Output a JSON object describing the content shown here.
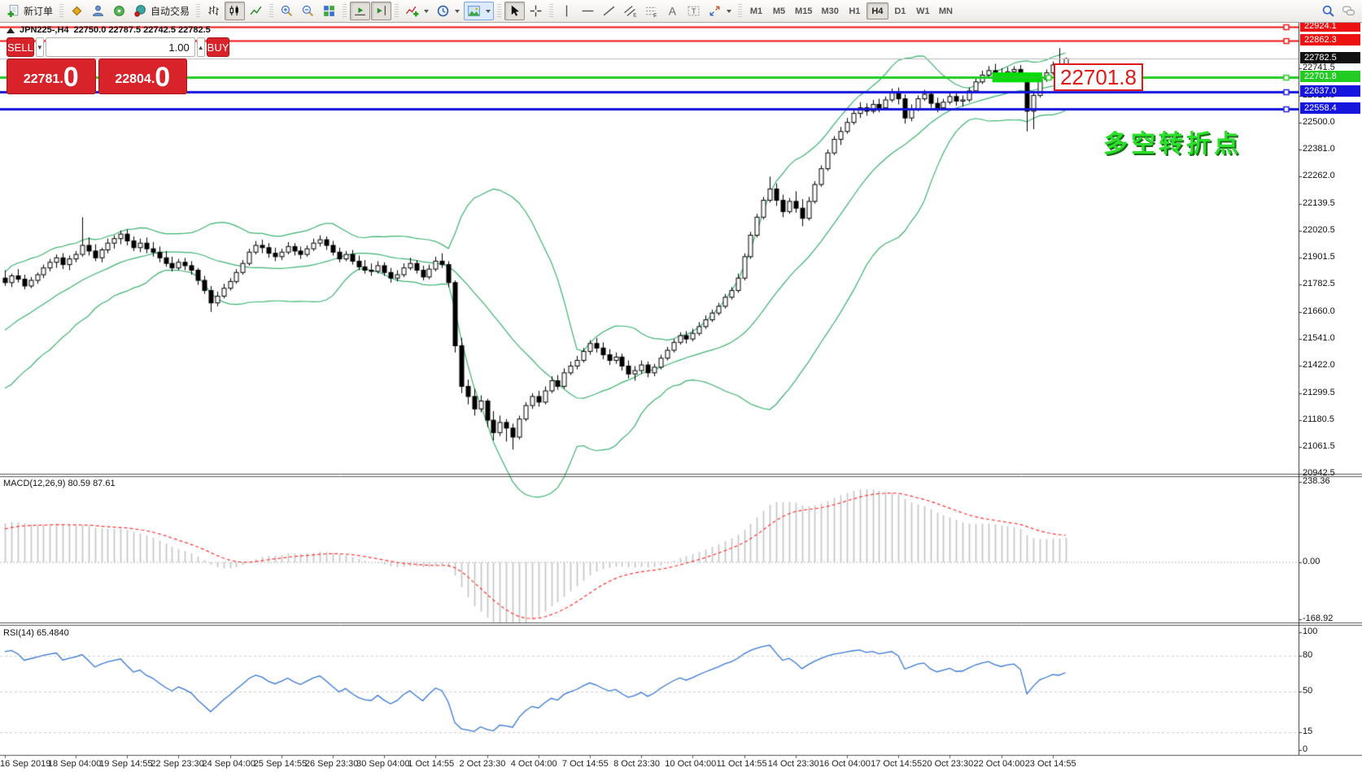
{
  "toolbar": {
    "new_order_label": "新订单",
    "autotrade_label": "自动交易",
    "timeframes": [
      "M1",
      "M5",
      "M15",
      "M30",
      "H1",
      "H4",
      "D1",
      "W1",
      "MN"
    ],
    "active_timeframe": "H4"
  },
  "chart_title": {
    "symbol_period": "JPN225-,H4",
    "ohlc_text": "22750.0 22787.5 22742.5 22782.5"
  },
  "one_click": {
    "sell_label": "SELL",
    "buy_label": "BUY",
    "volume": "1.00",
    "sell_price_main": "22781",
    "sell_price_sep": ".",
    "sell_price_pip": "0",
    "buy_price_main": "22804",
    "buy_price_sep": ".",
    "buy_price_pip": "0"
  },
  "annotations": {
    "price_tag": "22701.8",
    "turning_point_note": "多空转折点"
  },
  "chart_data": {
    "type": "candlestick",
    "symbol": "JPN225-",
    "period": "H4",
    "current_bar": {
      "open": 22750.0,
      "high": 22787.5,
      "low": 22742.5,
      "close": 22782.5
    },
    "main_axis": {
      "ylim": [
        20942.5,
        22942.1
      ],
      "ticks": [
        22741.5,
        22619.0,
        22500.0,
        22381.0,
        22262.0,
        22139.5,
        22020.5,
        21901.5,
        21782.5,
        21660.0,
        21541.0,
        21422.0,
        21299.5,
        21180.5,
        21061.5,
        20942.5
      ]
    },
    "hlines": [
      {
        "price": 22924.1,
        "color": "#ee1111",
        "width": 2,
        "label": "22924.1",
        "handle": true
      },
      {
        "price": 22862.3,
        "color": "#ee1111",
        "width": 2,
        "label": "22862.3",
        "handle": true
      },
      {
        "price": 22782.5,
        "color": "#bcbcbc",
        "width": 1,
        "label": "22782.5",
        "label_bg": "#111111",
        "handle": false
      },
      {
        "price": 22701.8,
        "color": "#22cc22",
        "width": 3,
        "label": "22701.8",
        "handle": true
      },
      {
        "price": 22637.0,
        "color": "#1515dd",
        "width": 3,
        "label": "22637.0",
        "handle": true
      },
      {
        "price": 22558.4,
        "color": "#1515dd",
        "width": 3,
        "label": "22558.4",
        "handle": true
      }
    ],
    "highlight_rect": {
      "from_bar": 154,
      "to_bar": 161,
      "top_price": 22722,
      "bottom_price": 22678,
      "color": "#00dc00"
    },
    "bollinger": {
      "period": 20,
      "deviation": 2,
      "color": "#3cb371"
    },
    "macd": {
      "label_text": "MACD(12,26,9)",
      "values_text": "80.59 87.61",
      "fast": 12,
      "slow": 26,
      "signal_period": 9,
      "ticks": [
        238.36,
        0.0,
        -168.92
      ],
      "hist_color": "#c4c4c4",
      "signal_color": "#ff3333"
    },
    "rsi": {
      "label_text": "RSI(14)",
      "value_text": "65.4840",
      "period": 14,
      "ticks": [
        100,
        80,
        50,
        15,
        0
      ],
      "levels": [
        80,
        50,
        15
      ],
      "color": "#3a78d6"
    },
    "time_labels": [
      "16 Sep 2019",
      "18 Sep 04:00",
      "19 Sep 14:55",
      "22 Sep 23:30",
      "24 Sep 04:00",
      "25 Sep 14:55",
      "26 Sep 23:30",
      "30 Sep 04:00",
      "1 Oct 14:55",
      "2 Oct 23:30",
      "4 Oct 04:00",
      "7 Oct 14:55",
      "8 Oct 23:30",
      "10 Oct 04:00",
      "11 Oct 14:55",
      "14 Oct 23:30",
      "16 Oct 04:00",
      "17 Oct 14:55",
      "20 Oct 23:30",
      "22 Oct 04:00",
      "23 Oct 14:55"
    ],
    "label_bar_indices": [
      0,
      11,
      19,
      27,
      35,
      43,
      51,
      59,
      67,
      75,
      83,
      91,
      99,
      107,
      115,
      123,
      131,
      139,
      147,
      155,
      163
    ],
    "warmup_closes": [
      21250,
      21280,
      21320,
      21300,
      21350,
      21390,
      21370,
      21420,
      21460,
      21440,
      21480,
      21520,
      21500,
      21540,
      21580,
      21560,
      21610,
      21650,
      21630,
      21680,
      21720,
      21700,
      21750,
      21790
    ],
    "ohlc": [
      [
        21810,
        21845,
        21775,
        21790
      ],
      [
        21790,
        21830,
        21770,
        21820
      ],
      [
        21820,
        21850,
        21790,
        21805
      ],
      [
        21805,
        21825,
        21760,
        21775
      ],
      [
        21775,
        21815,
        21765,
        21800
      ],
      [
        21800,
        21835,
        21785,
        21825
      ],
      [
        21825,
        21870,
        21810,
        21855
      ],
      [
        21855,
        21895,
        21840,
        21880
      ],
      [
        21880,
        21915,
        21855,
        21900
      ],
      [
        21900,
        21920,
        21850,
        21870
      ],
      [
        21870,
        21910,
        21845,
        21895
      ],
      [
        21895,
        21930,
        21880,
        21915
      ],
      [
        21915,
        22080,
        21905,
        21955
      ],
      [
        21955,
        21990,
        21910,
        21930
      ],
      [
        21930,
        21960,
        21885,
        21900
      ],
      [
        21900,
        21945,
        21880,
        21935
      ],
      [
        21935,
        21985,
        21920,
        21965
      ],
      [
        21965,
        22000,
        21940,
        21985
      ],
      [
        21985,
        22020,
        21960,
        22005
      ],
      [
        22005,
        22025,
        21955,
        21975
      ],
      [
        21975,
        21995,
        21930,
        21945
      ],
      [
        21945,
        21985,
        21925,
        21965
      ],
      [
        21965,
        21990,
        21920,
        21940
      ],
      [
        21940,
        21970,
        21905,
        21925
      ],
      [
        21925,
        21950,
        21880,
        21900
      ],
      [
        21900,
        21930,
        21860,
        21875
      ],
      [
        21875,
        21905,
        21840,
        21855
      ],
      [
        21855,
        21895,
        21845,
        21880
      ],
      [
        21880,
        21900,
        21845,
        21865
      ],
      [
        21865,
        21885,
        21825,
        21845
      ],
      [
        21845,
        21855,
        21780,
        21800
      ],
      [
        21800,
        21820,
        21740,
        21755
      ],
      [
        21755,
        21775,
        21660,
        21700
      ],
      [
        21700,
        21750,
        21685,
        21730
      ],
      [
        21730,
        21785,
        21720,
        21765
      ],
      [
        21765,
        21810,
        21755,
        21795
      ],
      [
        21795,
        21850,
        21785,
        21835
      ],
      [
        21835,
        21890,
        21825,
        21875
      ],
      [
        21875,
        21940,
        21865,
        21925
      ],
      [
        21925,
        21975,
        21915,
        21955
      ],
      [
        21955,
        21980,
        21920,
        21945
      ],
      [
        21945,
        21965,
        21900,
        21920
      ],
      [
        21920,
        21945,
        21885,
        21905
      ],
      [
        21905,
        21940,
        21890,
        21925
      ],
      [
        21925,
        21970,
        21915,
        21950
      ],
      [
        21950,
        21965,
        21910,
        21930
      ],
      [
        21930,
        21950,
        21895,
        21915
      ],
      [
        21915,
        21955,
        21905,
        21940
      ],
      [
        21940,
        21985,
        21930,
        21965
      ],
      [
        21965,
        22000,
        21950,
        21980
      ],
      [
        21980,
        21995,
        21935,
        21955
      ],
      [
        21955,
        21975,
        21910,
        21925
      ],
      [
        21925,
        21945,
        21880,
        21895
      ],
      [
        21895,
        21930,
        21885,
        21915
      ],
      [
        21915,
        21935,
        21870,
        21885
      ],
      [
        21885,
        21910,
        21845,
        21860
      ],
      [
        21860,
        21890,
        21830,
        21845
      ],
      [
        21845,
        21875,
        21820,
        21840
      ],
      [
        21840,
        21885,
        21830,
        21865
      ],
      [
        21865,
        21880,
        21820,
        21835
      ],
      [
        21835,
        21855,
        21790,
        21810
      ],
      [
        21810,
        21845,
        21795,
        21825
      ],
      [
        21825,
        21875,
        21815,
        21855
      ],
      [
        21855,
        21900,
        21845,
        21875
      ],
      [
        21875,
        21890,
        21830,
        21845
      ],
      [
        21845,
        21865,
        21800,
        21815
      ],
      [
        21815,
        21870,
        21805,
        21850
      ],
      [
        21850,
        21905,
        21840,
        21885
      ],
      [
        21885,
        21920,
        21855,
        21870
      ],
      [
        21870,
        21885,
        21770,
        21790
      ],
      [
        21790,
        21800,
        21480,
        21510
      ],
      [
        21510,
        21545,
        21300,
        21330
      ],
      [
        21330,
        21360,
        21250,
        21285
      ],
      [
        21285,
        21320,
        21200,
        21230
      ],
      [
        21230,
        21290,
        21215,
        21265
      ],
      [
        21265,
        21275,
        21150,
        21180
      ],
      [
        21180,
        21220,
        21090,
        21125
      ],
      [
        21125,
        21200,
        21110,
        21170
      ],
      [
        21170,
        21185,
        21085,
        21145
      ],
      [
        21145,
        21165,
        21050,
        21105
      ],
      [
        21105,
        21200,
        21095,
        21185
      ],
      [
        21185,
        21260,
        21175,
        21245
      ],
      [
        21245,
        21300,
        21230,
        21285
      ],
      [
        21285,
        21310,
        21240,
        21260
      ],
      [
        21260,
        21330,
        21250,
        21310
      ],
      [
        21310,
        21375,
        21300,
        21355
      ],
      [
        21355,
        21380,
        21315,
        21330
      ],
      [
        21330,
        21410,
        21320,
        21390
      ],
      [
        21390,
        21440,
        21380,
        21420
      ],
      [
        21420,
        21465,
        21405,
        21445
      ],
      [
        21445,
        21500,
        21435,
        21485
      ],
      [
        21485,
        21535,
        21470,
        21520
      ],
      [
        21520,
        21545,
        21480,
        21500
      ],
      [
        21500,
        21525,
        21450,
        21470
      ],
      [
        21470,
        21495,
        21425,
        21445
      ],
      [
        21445,
        21480,
        21430,
        21460
      ],
      [
        21460,
        21475,
        21400,
        21420
      ],
      [
        21420,
        21445,
        21365,
        21385
      ],
      [
        21385,
        21420,
        21355,
        21400
      ],
      [
        21400,
        21445,
        21385,
        21425
      ],
      [
        21425,
        21440,
        21370,
        21390
      ],
      [
        21390,
        21430,
        21375,
        21415
      ],
      [
        21415,
        21470,
        21405,
        21455
      ],
      [
        21455,
        21505,
        21445,
        21490
      ],
      [
        21490,
        21540,
        21480,
        21525
      ],
      [
        21525,
        21570,
        21515,
        21555
      ],
      [
        21555,
        21575,
        21520,
        21540
      ],
      [
        21540,
        21585,
        21530,
        21565
      ],
      [
        21565,
        21615,
        21555,
        21595
      ],
      [
        21595,
        21645,
        21585,
        21625
      ],
      [
        21625,
        21670,
        21615,
        21655
      ],
      [
        21655,
        21700,
        21645,
        21685
      ],
      [
        21685,
        21740,
        21675,
        21725
      ],
      [
        21725,
        21770,
        21715,
        21755
      ],
      [
        21755,
        21830,
        21745,
        21810
      ],
      [
        21810,
        21920,
        21800,
        21905
      ],
      [
        21905,
        22015,
        21895,
        22000
      ],
      [
        22000,
        22095,
        21990,
        22080
      ],
      [
        22080,
        22170,
        22070,
        22155
      ],
      [
        22155,
        22260,
        22145,
        22205
      ],
      [
        22205,
        22230,
        22130,
        22155
      ],
      [
        22155,
        22180,
        22080,
        22105
      ],
      [
        22105,
        22165,
        22095,
        22150
      ],
      [
        22150,
        22195,
        22100,
        22120
      ],
      [
        22120,
        22160,
        22040,
        22075
      ],
      [
        22075,
        22170,
        22065,
        22150
      ],
      [
        22150,
        22240,
        22140,
        22225
      ],
      [
        22225,
        22310,
        22215,
        22295
      ],
      [
        22295,
        22380,
        22285,
        22365
      ],
      [
        22365,
        22440,
        22355,
        22425
      ],
      [
        22425,
        22480,
        22400,
        22460
      ],
      [
        22460,
        22520,
        22450,
        22500
      ],
      [
        22500,
        22555,
        22490,
        22540
      ],
      [
        22540,
        22590,
        22520,
        22565
      ],
      [
        22565,
        22585,
        22530,
        22550
      ],
      [
        22550,
        22600,
        22540,
        22580
      ],
      [
        22580,
        22605,
        22545,
        22565
      ],
      [
        22565,
        22615,
        22555,
        22600
      ],
      [
        22600,
        22650,
        22590,
        22630
      ],
      [
        22630,
        22655,
        22580,
        22605
      ],
      [
        22605,
        22625,
        22495,
        22520
      ],
      [
        22520,
        22580,
        22505,
        22560
      ],
      [
        22560,
        22620,
        22550,
        22605
      ],
      [
        22605,
        22645,
        22595,
        22625
      ],
      [
        22625,
        22640,
        22565,
        22585
      ],
      [
        22585,
        22610,
        22545,
        22565
      ],
      [
        22565,
        22605,
        22555,
        22590
      ],
      [
        22590,
        22630,
        22580,
        22615
      ],
      [
        22615,
        22635,
        22575,
        22595
      ],
      [
        22595,
        22620,
        22570,
        22600
      ],
      [
        22600,
        22655,
        22590,
        22640
      ],
      [
        22640,
        22695,
        22630,
        22680
      ],
      [
        22680,
        22730,
        22670,
        22710
      ],
      [
        22710,
        22750,
        22695,
        22730
      ],
      [
        22730,
        22760,
        22700,
        22715
      ],
      [
        22715,
        22740,
        22680,
        22705
      ],
      [
        22705,
        22745,
        22690,
        22725
      ],
      [
        22725,
        22750,
        22705,
        22735
      ],
      [
        22735,
        22755,
        22695,
        22710
      ],
      [
        22710,
        22720,
        22460,
        22550
      ],
      [
        22550,
        22640,
        22470,
        22620
      ],
      [
        22620,
        22700,
        22610,
        22690
      ],
      [
        22690,
        22735,
        22680,
        22720
      ],
      [
        22720,
        22770,
        22710,
        22755
      ],
      [
        22755,
        22830,
        22745,
        22750
      ],
      [
        22750,
        22787.5,
        22742.5,
        22782.5
      ]
    ]
  }
}
